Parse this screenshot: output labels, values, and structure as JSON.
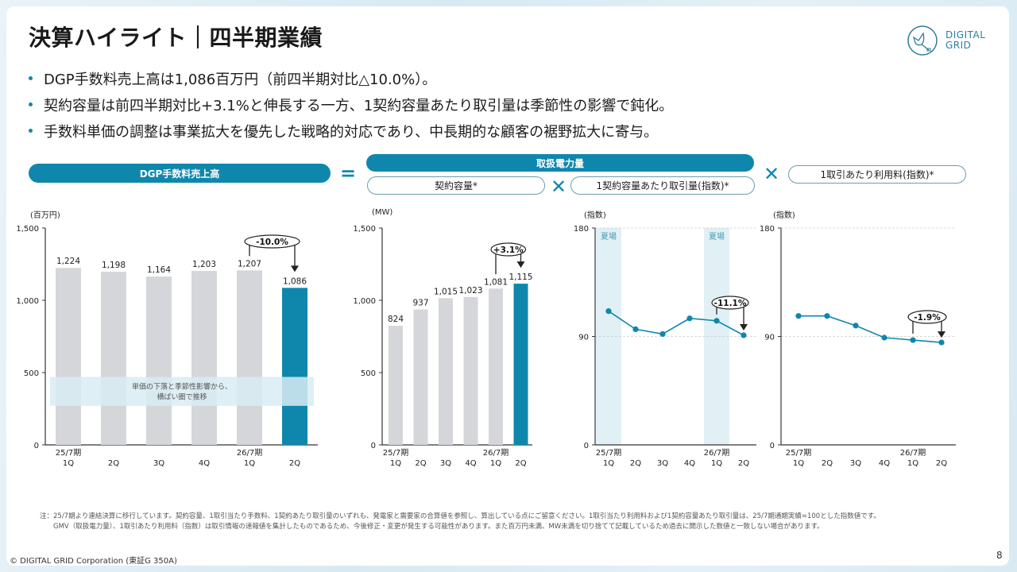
{
  "title": "決算ハイライト｜四半期業績",
  "logo": {
    "line1": "DIGITAL",
    "line2": "GRID"
  },
  "bullets": [
    "DGP手数料売上高は1,086百万円（前四半期対比△10.0%）。",
    "契約容量は前四半期対比+3.1%と伸長する一方、1契約容量あたり取引量は季節性の影響で鈍化。",
    "手数料単価の調整は事業拡大を優先した戦略的対応であり、中長期的な顧客の裾野拡大に寄与。"
  ],
  "formula": {
    "revenue": "DGP手数料売上高",
    "equals": "=",
    "volume": "取扱電力量",
    "capacity": "契約容量*",
    "times": "✕",
    "per_capacity": "1契約容量あたり取引量(指数)*",
    "fee": "1取引あたり利用料(指数)*"
  },
  "colors": {
    "accent": "#0f87ad",
    "bar_gray": "#d4d6d9",
    "summer_band": "#e1f0f5",
    "callout_band": "#d8ecf3"
  },
  "chart_data": [
    {
      "type": "bar",
      "id": "revenue",
      "unit": "(百万円)",
      "categories": [
        "25/7期\n1Q",
        "2Q",
        "3Q",
        "4Q",
        "26/7期\n1Q",
        "2Q"
      ],
      "values": [
        1224,
        1198,
        1164,
        1203,
        1207,
        1086
      ],
      "value_labels": [
        "1,224",
        "1,198",
        "1,164",
        "1,203",
        "1,207",
        "1,086"
      ],
      "highlight_index": 5,
      "ylim": [
        0,
        1500
      ],
      "yticks": [
        0,
        500,
        1000,
        1500
      ],
      "ytick_labels": [
        "0",
        "500",
        "1,000",
        "1,500"
      ],
      "change_label": "-10.0%",
      "annotation": [
        "単価の下落と季節性影響から、",
        "横ばい圏で推移"
      ]
    },
    {
      "type": "bar",
      "id": "capacity",
      "unit": "(MW)",
      "categories": [
        "25/7期\n1Q",
        "2Q",
        "3Q",
        "4Q",
        "26/7期\n1Q",
        "2Q"
      ],
      "values": [
        824,
        937,
        1015,
        1023,
        1081,
        1115
      ],
      "value_labels": [
        "824",
        "937",
        "1,015",
        "1,023",
        "1,081",
        "1,115"
      ],
      "highlight_index": 5,
      "ylim": [
        0,
        1500
      ],
      "yticks": [
        0,
        500,
        1000,
        1500
      ],
      "ytick_labels": [
        "0",
        "500",
        "1,000",
        "1,500"
      ],
      "change_label": "+3.1%"
    },
    {
      "type": "line",
      "id": "volume_per_capacity",
      "unit": "(指数)",
      "categories": [
        "25/7期\n1Q",
        "2Q",
        "3Q",
        "4Q",
        "26/7期\n1Q",
        "2Q"
      ],
      "values": [
        111,
        96,
        92,
        105,
        103,
        91
      ],
      "ylim": [
        0,
        180
      ],
      "yticks": [
        0,
        90,
        180
      ],
      "ytick_labels": [
        "0",
        "90",
        "180"
      ],
      "gridlines": [
        90,
        180
      ],
      "summer_bands": [
        0,
        4
      ],
      "summer_label": "夏場",
      "change_label": "-11.1%"
    },
    {
      "type": "line",
      "id": "fee_per_transaction",
      "unit": "(指数)",
      "categories": [
        "25/7期\n1Q",
        "2Q",
        "3Q",
        "4Q",
        "26/7期\n1Q",
        "2Q"
      ],
      "values": [
        107,
        107,
        99,
        89,
        87,
        85
      ],
      "ylim": [
        0,
        180
      ],
      "yticks": [
        0,
        90,
        180
      ],
      "ytick_labels": [
        "0",
        "90",
        "180"
      ],
      "gridlines": [
        90,
        180
      ],
      "change_label": "-1.9%"
    }
  ],
  "notes": [
    "注：25/7期より連結決算に移行しています。契約容量、1取引当たり手数料、1契約あたり取引量のいずれも、発電家と需要家の合算値を参照し、算出している点にご留意ください。1取引当たり利用料および1契約容量あたり取引量は、25/7期通期実績=100とした指数値です。",
    "GMV（取扱電力量）、1取引あたり利用料（指数）は取引情報の速報値を集計したものであるため、今後修正・変更が発生する可能性があります。また百万円未満、MW未満を切り捨てて記載しているため過去に開示した数値と一致しない場合があります。"
  ],
  "footer": "© DIGITAL GRID Corporation (東証G 350A)",
  "page_number": "8"
}
